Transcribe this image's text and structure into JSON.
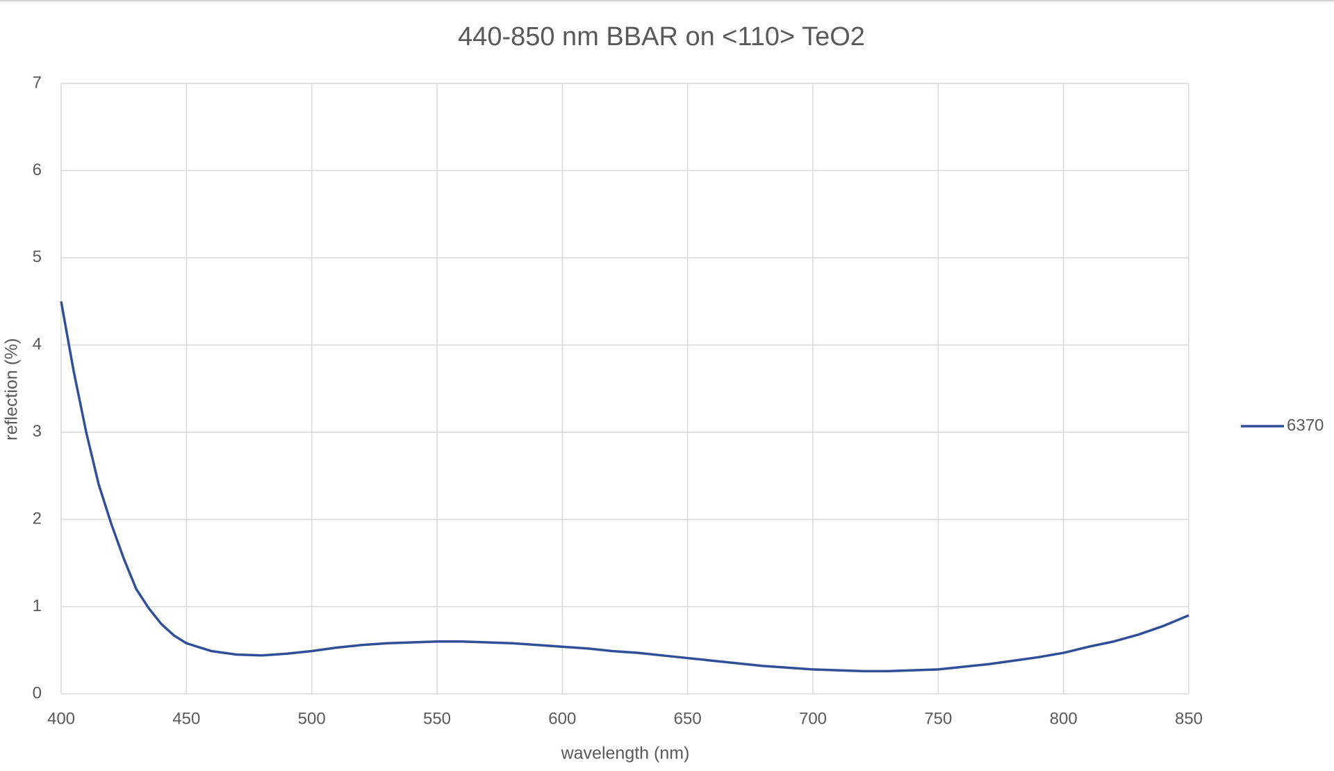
{
  "chart_data": {
    "type": "line",
    "title": "440-850 nm BBAR on <110> TeO2",
    "x_label": "wavelength (nm)",
    "y_label": "reflection (%)",
    "x": [
      400,
      405,
      410,
      415,
      420,
      425,
      430,
      435,
      440,
      445,
      450,
      460,
      470,
      480,
      490,
      500,
      510,
      520,
      530,
      540,
      550,
      560,
      570,
      580,
      590,
      600,
      610,
      620,
      630,
      640,
      650,
      660,
      670,
      680,
      690,
      700,
      710,
      720,
      730,
      740,
      750,
      760,
      770,
      780,
      790,
      800,
      810,
      820,
      830,
      840,
      850
    ],
    "series": [
      {
        "name": "6370",
        "color": "#2f4f99",
        "values": [
          4.5,
          3.7,
          3.0,
          2.4,
          1.95,
          1.55,
          1.2,
          0.98,
          0.8,
          0.67,
          0.58,
          0.49,
          0.45,
          0.44,
          0.46,
          0.49,
          0.53,
          0.56,
          0.58,
          0.59,
          0.6,
          0.6,
          0.59,
          0.58,
          0.56,
          0.54,
          0.52,
          0.49,
          0.47,
          0.44,
          0.41,
          0.38,
          0.35,
          0.32,
          0.3,
          0.28,
          0.27,
          0.26,
          0.26,
          0.27,
          0.28,
          0.31,
          0.34,
          0.38,
          0.42,
          0.47,
          0.54,
          0.6,
          0.68,
          0.78,
          0.9
        ]
      }
    ],
    "xlim": [
      400,
      850
    ],
    "xticks": [
      400,
      450,
      500,
      550,
      600,
      650,
      700,
      750,
      800,
      850
    ],
    "ylim": [
      0,
      7
    ],
    "yticks": [
      0,
      1,
      2,
      3,
      4,
      5,
      6,
      7
    ],
    "grid": true,
    "legend": "right"
  }
}
